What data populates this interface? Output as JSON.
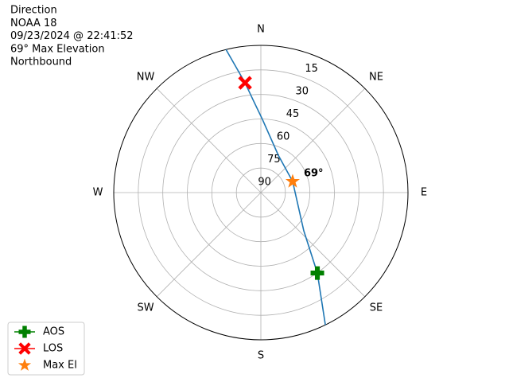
{
  "chart_data": {
    "type": "polar",
    "title_lines": [
      "Direction",
      "NOAA 18",
      "09/23/2024 @ 22:41:52",
      "69° Max Elevation",
      "Northbound"
    ],
    "xticks": [
      {
        "value": 0,
        "label": "N"
      },
      {
        "value": 45,
        "label": "NE"
      },
      {
        "value": 90,
        "label": "E"
      },
      {
        "value": 135,
        "label": "SE"
      },
      {
        "value": 180,
        "label": "S"
      },
      {
        "value": 225,
        "label": "SW"
      },
      {
        "value": 270,
        "label": "W"
      },
      {
        "value": 315,
        "label": "NW"
      }
    ],
    "ylim": [
      90,
      0
    ],
    "yticks": [
      90,
      75,
      60,
      45,
      30,
      15
    ],
    "grid": true,
    "track": {
      "color": "#1f77b4",
      "x": [
        346.3,
        351.8,
        355.1,
        1.2,
        25.1,
        70.7,
        131.6,
        144.9,
        154
      ],
      "values": [
        0,
        22.2,
        32.9,
        45.2,
        64.8,
        69.4,
        54.9,
        29.9,
        0
      ]
    },
    "series": [
      {
        "name": "AOS",
        "color": "#008000",
        "marker": "plus",
        "x": [
          144.9
        ],
        "values": [
          29.9
        ]
      },
      {
        "name": "LOS",
        "color": "#ff0000",
        "marker": "x",
        "x": [
          351.8
        ],
        "values": [
          22.2
        ]
      },
      {
        "name": "Max El",
        "color": "#ff7f0e",
        "marker": "star",
        "x": [
          70.7
        ],
        "values": [
          69.4
        ]
      }
    ],
    "annotation": {
      "text": "69°",
      "x": 70.7,
      "y": 69.4
    },
    "legend": "lower left"
  }
}
